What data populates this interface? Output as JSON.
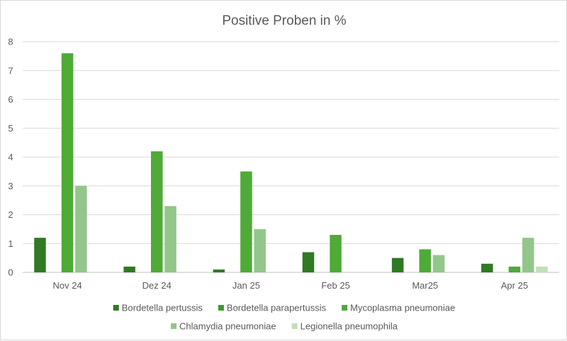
{
  "chart_data": {
    "type": "bar",
    "title": "Positive Proben in %",
    "xlabel": "",
    "ylabel": "",
    "ylim": [
      0,
      8
    ],
    "yticks": [
      0,
      1,
      2,
      3,
      4,
      5,
      6,
      7,
      8
    ],
    "grid": true,
    "legend_position": "bottom",
    "categories": [
      "Nov 24",
      "Dez 24",
      "Jan 25",
      "Feb 25",
      "Mar25",
      "Apr 25"
    ],
    "series": [
      {
        "name": "Bordetella pertussis",
        "color": "#2f7a22",
        "values": [
          1.2,
          0.2,
          0.1,
          0.7,
          0.5,
          0.3
        ]
      },
      {
        "name": "Bordetella parapertussis",
        "color": "#3f9a2e",
        "values": [
          0,
          0,
          0,
          0,
          0,
          0
        ]
      },
      {
        "name": "Mycoplasma pneumoniae",
        "color": "#4faa36",
        "values": [
          7.6,
          4.2,
          3.5,
          1.3,
          0.8,
          0.2
        ]
      },
      {
        "name": "Chlamydia pneumoniae",
        "color": "#93c68a",
        "values": [
          3.0,
          2.3,
          1.5,
          0,
          0.6,
          1.2
        ]
      },
      {
        "name": "Legionella pneumophila",
        "color": "#c1dfba",
        "values": [
          0,
          0,
          0,
          0,
          0,
          0.2
        ]
      }
    ]
  }
}
